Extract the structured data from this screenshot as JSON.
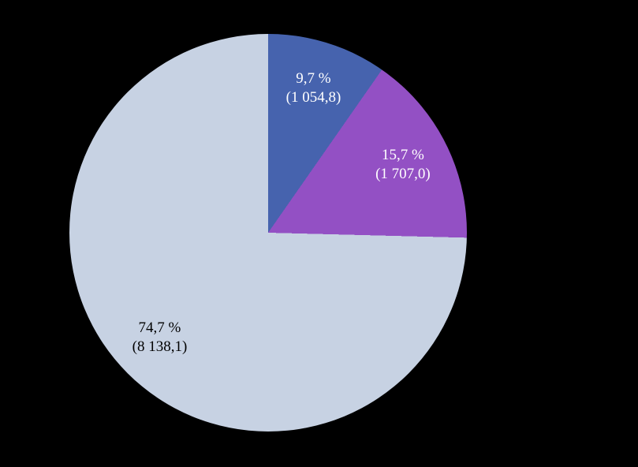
{
  "background_color": "#000000",
  "chart_data": {
    "type": "pie",
    "title": "",
    "legend": false,
    "start_angle_deg": 0,
    "direction": "clockwise",
    "label_format": "percent_and_value",
    "slices": [
      {
        "percent_label": "9,7 %",
        "value_label": "(1 054,8)",
        "percent": 9.7,
        "value": 1054.8,
        "color": "#4663AE",
        "text_color": "#FFFFFF"
      },
      {
        "percent_label": "15,7 %",
        "value_label": "(1 707,0)",
        "percent": 15.7,
        "value": 1707.0,
        "color": "#9350C4",
        "text_color": "#FFFFFF"
      },
      {
        "percent_label": "74,7 %",
        "value_label": "(8 138,1)",
        "percent": 74.7,
        "value": 8138.1,
        "color": "#C7D2E3",
        "text_color": "#000000"
      }
    ]
  }
}
